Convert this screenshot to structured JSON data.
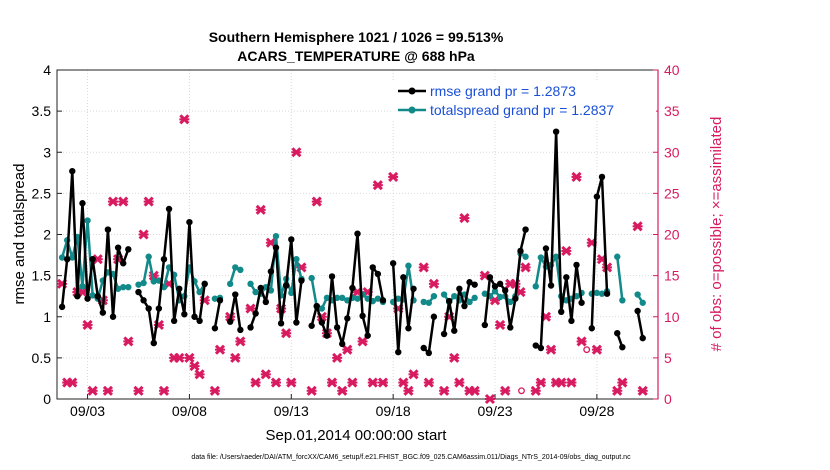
{
  "colors": {
    "rmse": "#000000",
    "spread": "#138a8a",
    "obs": "#d81b60",
    "legend_text": "#1a4fd6",
    "grid": "#d9d9d9",
    "axis": "#222222"
  },
  "chart_data": {
    "type": "line",
    "title": "Southern Hemisphere 1021 / 1026 = 99.513%",
    "subtitle": "ACARS_TEMPERATURE @ 688 hPa",
    "xlabel": "Sep.01,2014 00:00:00 start",
    "ylabel": "rmse and totalspread",
    "y2label": "# of obs: o=possible; ×=assimilated",
    "xlim": [
      1.5,
      31.0
    ],
    "ylim": [
      0,
      4
    ],
    "y2lim": [
      0,
      40
    ],
    "x_ticks": [
      3,
      8,
      13,
      18,
      23,
      28
    ],
    "x_tick_labels": [
      "09/03",
      "09/08",
      "09/13",
      "09/18",
      "09/23",
      "09/28"
    ],
    "y_ticks": [
      0,
      0.5,
      1,
      1.5,
      2,
      2.5,
      3,
      3.5,
      4
    ],
    "y_tick_labels": [
      "0",
      "0.5",
      "1",
      "1.5",
      "2",
      "2.5",
      "3",
      "3.5",
      "4"
    ],
    "y2_ticks": [
      0,
      5,
      10,
      15,
      20,
      25,
      30,
      35,
      40
    ],
    "y2_tick_labels": [
      "0",
      "5",
      "10",
      "15",
      "20",
      "25",
      "30",
      "35",
      "40"
    ],
    "grid": true,
    "legend_position": "top-right",
    "footnote": "data file: /Users/raeder/DAI/ATM_forcXX/CAM6_setup/f.e21.FHIST_BGC.f09_025.CAM6assim.011/Diags_NTrS_2014-09/obs_diag_output.nc",
    "series": [
      {
        "name": "rmse grand pr = 1.2873",
        "x": [
          1.75,
          2.0,
          2.25,
          2.5,
          2.75,
          3.0,
          3.25,
          3.5,
          3.75,
          4.0,
          4.25,
          4.5,
          4.75,
          5.0,
          5.5,
          5.75,
          6.0,
          6.25,
          6.5,
          6.75,
          7.0,
          7.25,
          7.5,
          7.75,
          8.0,
          8.25,
          8.5,
          8.75,
          9.25,
          9.5,
          10.0,
          10.25,
          10.5,
          11.0,
          11.25,
          11.5,
          11.75,
          12.0,
          12.25,
          12.5,
          12.75,
          13.0,
          13.25,
          13.5,
          14.0,
          14.25,
          14.5,
          14.75,
          15.0,
          15.25,
          15.5,
          15.75,
          16.0,
          16.25,
          16.5,
          16.75,
          17.0,
          17.25,
          17.5,
          18.0,
          18.25,
          18.5,
          18.75,
          19.0,
          19.5,
          19.75,
          20.0,
          20.5,
          20.75,
          21.0,
          21.25,
          21.5,
          21.75,
          22.0,
          22.5,
          22.75,
          23.0,
          23.25,
          23.5,
          23.75,
          24.0,
          24.25,
          24.5,
          25.0,
          25.25,
          25.5,
          25.75,
          26.0,
          26.25,
          26.5,
          26.75,
          27.0,
          27.25,
          27.75,
          28.0,
          28.25,
          28.5,
          29.0,
          29.25,
          30.0,
          30.25
        ],
        "y": [
          1.12,
          1.7,
          2.77,
          1.25,
          2.38,
          1.22,
          1.7,
          1.25,
          1.05,
          2.06,
          1.0,
          1.84,
          1.65,
          1.82,
          1.3,
          1.2,
          1.1,
          0.68,
          1.1,
          1.7,
          2.31,
          0.95,
          1.34,
          1.03,
          2.15,
          1.0,
          0.95,
          1.4,
          0.86,
          1.2,
          0.94,
          1.27,
          0.84,
          0.87,
          1.04,
          1.35,
          1.18,
          1.55,
          1.84,
          0.92,
          1.38,
          1.94,
          0.93,
          1.44,
          0.89,
          1.13,
          0.93,
          0.77,
          1.49,
          0.87,
          0.67,
          0.98,
          1.35,
          2.01,
          1.01,
          0.77,
          1.6,
          1.52,
          1.2,
          1.65,
          0.57,
          1.48,
          0.86,
          1.34,
          0.62,
          0.56,
          1.0,
          0.79,
          1.19,
          0.83,
          1.34,
          1.13,
          1.42,
          1.39,
          0.9,
          1.48,
          1.37,
          1.4,
          1.32,
          0.87,
          1.22,
          1.8,
          2.06,
          0.65,
          0.62,
          1.83,
          1.38,
          3.25,
          1.06,
          1.48,
          0.95,
          1.63,
          1.17,
          0.86,
          2.46,
          2.7,
          1.28,
          0.8,
          0.63,
          1.07,
          0.74
        ]
      },
      {
        "name": "totalspread grand pr = 1.2837",
        "x": [
          1.75,
          2.0,
          2.25,
          2.5,
          2.75,
          3.0,
          3.25,
          3.5,
          3.75,
          4.0,
          4.25,
          4.5,
          4.75,
          5.0,
          5.5,
          5.75,
          6.0,
          6.25,
          6.5,
          6.75,
          7.0,
          7.25,
          7.5,
          7.75,
          8.0,
          8.25,
          8.5,
          8.75,
          9.25,
          9.5,
          10.0,
          10.25,
          10.5,
          11.0,
          11.25,
          11.5,
          11.75,
          12.0,
          12.25,
          12.5,
          12.75,
          13.0,
          13.25,
          13.5,
          14.0,
          14.25,
          14.5,
          14.75,
          15.0,
          15.25,
          15.5,
          15.75,
          16.0,
          16.25,
          16.5,
          16.75,
          17.0,
          17.25,
          17.5,
          18.0,
          18.25,
          18.5,
          18.75,
          19.0,
          19.5,
          19.75,
          20.0,
          20.5,
          20.75,
          21.0,
          21.25,
          21.5,
          21.75,
          22.0,
          22.5,
          22.75,
          23.0,
          23.25,
          23.5,
          23.75,
          24.0,
          24.25,
          24.5,
          25.0,
          25.25,
          25.5,
          25.75,
          26.0,
          26.25,
          26.5,
          26.75,
          27.0,
          27.25,
          27.75,
          28.0,
          28.25,
          28.5,
          29.0,
          29.25,
          30.0,
          30.25
        ],
        "y": [
          1.72,
          1.93,
          1.72,
          1.97,
          1.37,
          2.17,
          1.26,
          1.22,
          1.44,
          1.54,
          1.52,
          1.34,
          1.36,
          1.36,
          1.39,
          1.41,
          1.73,
          1.43,
          1.44,
          1.36,
          1.6,
          1.51,
          1.2,
          1.25,
          1.6,
          1.43,
          1.3,
          1.4,
          1.22,
          1.23,
          1.4,
          1.6,
          1.57,
          1.4,
          1.3,
          1.28,
          1.36,
          1.32,
          1.98,
          1.26,
          1.46,
          1.29,
          1.7,
          1.46,
          1.47,
          1.12,
          1.1,
          1.23,
          1.2,
          1.23,
          1.23,
          1.2,
          1.23,
          1.22,
          1.27,
          1.22,
          1.19,
          1.22,
          1.18,
          1.18,
          1.22,
          1.21,
          1.62,
          1.2,
          1.18,
          1.17,
          1.25,
          1.27,
          1.18,
          1.25,
          1.2,
          1.27,
          1.18,
          1.23,
          1.28,
          1.25,
          1.31,
          1.24,
          1.25,
          1.18,
          1.25,
          1.77,
          1.73,
          1.37,
          1.72,
          1.61,
          1.63,
          1.73,
          1.25,
          1.2,
          1.22,
          1.25,
          1.29,
          1.28,
          1.29,
          1.28,
          1.31,
          1.73,
          1.2,
          1.27,
          1.17
        ]
      },
      {
        "name": "# of obs assimilated",
        "axis": "right",
        "x": [
          1.75,
          2.0,
          2.25,
          2.5,
          2.75,
          3.0,
          3.25,
          3.5,
          3.75,
          4.0,
          4.25,
          4.5,
          4.75,
          5.0,
          5.5,
          5.75,
          6.0,
          6.25,
          6.5,
          6.75,
          7.0,
          7.25,
          7.5,
          7.75,
          8.0,
          8.25,
          8.5,
          8.75,
          9.25,
          9.5,
          10.0,
          10.25,
          10.5,
          11.0,
          11.25,
          11.5,
          11.75,
          12.0,
          12.25,
          12.5,
          12.75,
          13.0,
          13.25,
          13.5,
          14.0,
          14.25,
          14.5,
          14.75,
          15.0,
          15.25,
          15.5,
          15.75,
          16.0,
          16.25,
          16.5,
          16.75,
          17.0,
          17.25,
          17.5,
          18.0,
          18.25,
          18.5,
          18.75,
          19.0,
          19.5,
          19.75,
          20.0,
          20.5,
          20.75,
          21.0,
          21.25,
          21.5,
          21.75,
          22.0,
          22.5,
          22.75,
          23.0,
          23.25,
          23.5,
          23.75,
          24.0,
          24.25,
          24.5,
          25.0,
          25.25,
          25.5,
          25.75,
          26.0,
          26.25,
          26.5,
          26.75,
          27.0,
          27.25,
          27.75,
          28.0,
          28.25,
          28.5,
          29.0,
          29.25,
          30.0,
          30.25
        ],
        "y": [
          14,
          2,
          2,
          13,
          13,
          9,
          1,
          17,
          12,
          1,
          24,
          17,
          24,
          7,
          1,
          20,
          24,
          15,
          9,
          1,
          14,
          5,
          5,
          34,
          5,
          4,
          3,
          12,
          1,
          6,
          10,
          5,
          7,
          11,
          2,
          23,
          3,
          19,
          2,
          11,
          8,
          2,
          30,
          16,
          1,
          24,
          10,
          8,
          2,
          5,
          1,
          6,
          2,
          13,
          7,
          13,
          2,
          26,
          2,
          27,
          11,
          2,
          1,
          3,
          16,
          2,
          14,
          1,
          10,
          5,
          2,
          22,
          1,
          1,
          15,
          0,
          12,
          9,
          1,
          14,
          14,
          13,
          16,
          1,
          2,
          10,
          6,
          2,
          2,
          18,
          2,
          27,
          7,
          19,
          6,
          17,
          16,
          1,
          2,
          21,
          1
        ]
      }
    ],
    "possible_marker_label": "o",
    "possible_markers_x": [
      24.3,
      27.5
    ]
  }
}
